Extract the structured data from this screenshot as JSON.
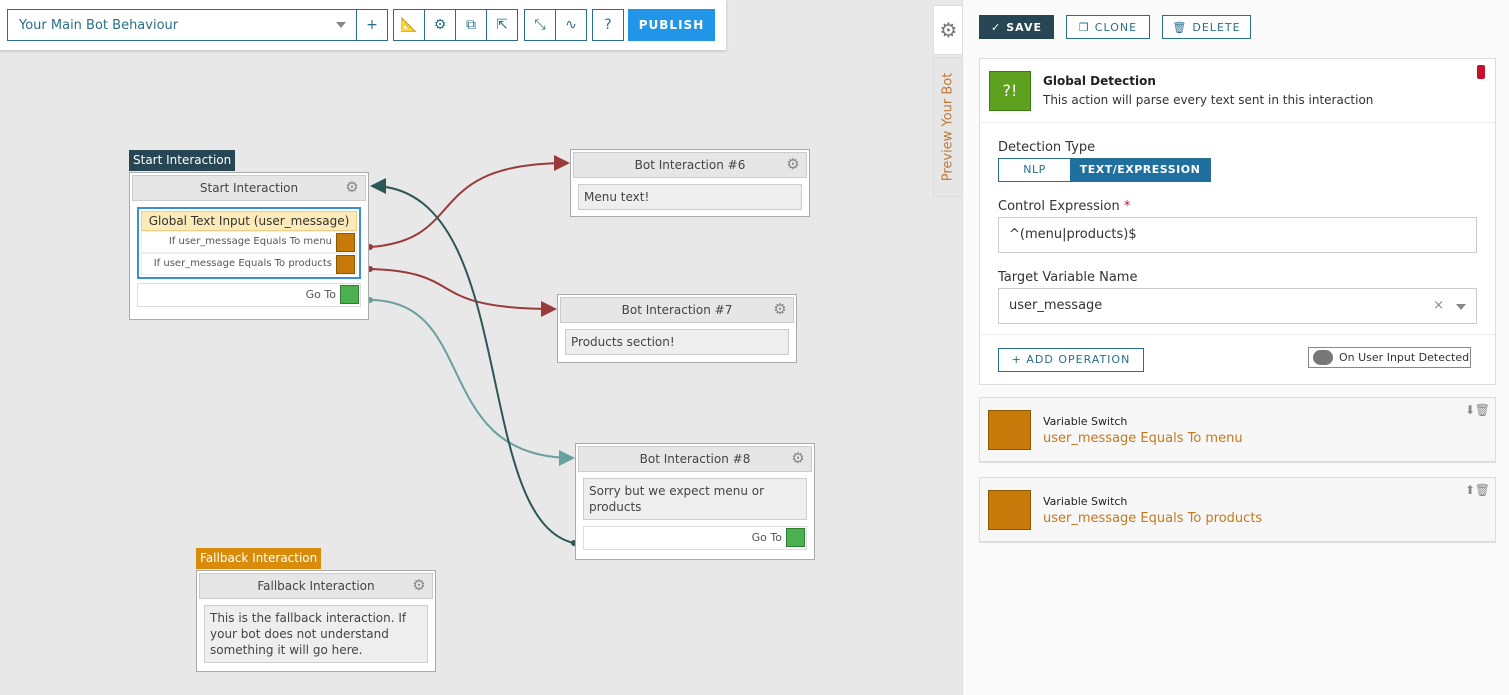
{
  "toolbar": {
    "behaviour": "Your Main Bot Behaviour",
    "publish": "PUBLISH",
    "icons": [
      "plus-icon",
      "ruler-icon",
      "gear-icon",
      "puzzle-icon",
      "export-icon",
      "compress-icon",
      "chart-icon",
      "help-icon"
    ]
  },
  "nodes": {
    "start": {
      "label": "Start Interaction",
      "title": "Start Interaction",
      "input": "Global Text Input (user_message)",
      "rows": [
        "If user_message Equals To menu",
        "If user_message Equals To products"
      ],
      "goto": "Go To"
    },
    "bot6": {
      "title": "Bot Interaction #6",
      "text": "Menu text!"
    },
    "bot7": {
      "title": "Bot Interaction #7",
      "text": "Products section!"
    },
    "bot8": {
      "title": "Bot Interaction #8",
      "text": "Sorry but we expect menu or products",
      "goto": "Go To"
    },
    "fallback": {
      "label": "Fallback Interaction",
      "title": "Fallback Interaction",
      "text": "This is the fallback interaction. If your bot does not understand something it will go here."
    }
  },
  "panel": {
    "preview_tab": "Preview Your Bot",
    "save": "SAVE",
    "clone": "CLONE",
    "delete": "DELETE",
    "action_title": "Global Detection",
    "action_desc": "This action will parse every text sent in this interaction",
    "detection_label": "Detection Type",
    "detection_options": [
      "NLP",
      "TEXT/EXPRESSION"
    ],
    "detection_selected": "TEXT/EXPRESSION",
    "control_label": "Control Expression",
    "required": "*",
    "control_value": "^(menu|products)$",
    "target_label": "Target Variable Name",
    "target_value": "user_message",
    "clear": "×",
    "add_operation": "+ ADD OPERATION",
    "trigger": "On User Input Detected",
    "switches": [
      {
        "title": "Variable Switch",
        "subtitle": "user_message Equals To menu"
      },
      {
        "title": "Variable Switch",
        "subtitle": "user_message Equals To products"
      }
    ]
  },
  "colors": {
    "accent": "#2a6f8a",
    "publish": "#2196e8",
    "start_label": "#264653",
    "fallback_label": "#d98b0a",
    "switch": "#c77a0a",
    "green": "#5ea11f",
    "link_red": "#9a3a3a",
    "link_teal": "#6a9fa0",
    "link_dark": "#2d5656"
  }
}
